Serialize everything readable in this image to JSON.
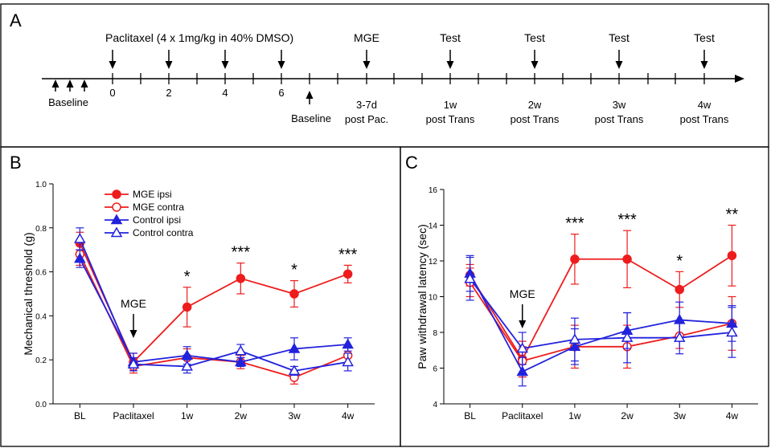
{
  "colors": {
    "red": "#ee1c1c",
    "blue": "#2222dd",
    "black": "#000000"
  },
  "panel_a": {
    "letter": "A",
    "paclitaxel_label": "Paclitaxel (4 x 1mg/kg in 40% DMSO)",
    "mge_label": "MGE",
    "test_label": "Test",
    "baseline_left": "Baseline",
    "baseline_right": "Baseline",
    "day_labels": [
      "0",
      "2",
      "4",
      "6"
    ],
    "stage_lines": [
      [
        "3-7d",
        "post Pac."
      ],
      [
        "1w",
        "post Trans"
      ],
      [
        "2w",
        "post Trans"
      ],
      [
        "3w",
        "post Trans"
      ],
      [
        "4w",
        "post Trans"
      ]
    ]
  },
  "chart_data": [
    {
      "panel": "B",
      "type": "line",
      "ylabel": "Mechanical threshold (g)",
      "xlabel": "",
      "categories": [
        "BL",
        "Paclitaxel",
        "1w",
        "2w",
        "3w",
        "4w"
      ],
      "ylim": [
        0.0,
        1.0
      ],
      "yticks": [
        "0.0",
        "0.2",
        "0.4",
        "0.6",
        "0.8",
        "1.0"
      ],
      "annotation": "MGE",
      "annotation_at": "Paclitaxel",
      "legend_position": "top-left",
      "significance": [
        "",
        "",
        "*",
        "***",
        "*",
        "***"
      ],
      "series": [
        {
          "name": "MGE ipsi",
          "color": "red",
          "marker": "circle",
          "filled": true,
          "values": [
            0.73,
            0.19,
            0.44,
            0.57,
            0.5,
            0.59
          ],
          "errors": [
            0.05,
            0.04,
            0.09,
            0.07,
            0.06,
            0.04
          ]
        },
        {
          "name": "MGE contra",
          "color": "red",
          "marker": "circle",
          "filled": false,
          "values": [
            0.68,
            0.17,
            0.21,
            0.19,
            0.12,
            0.22
          ],
          "errors": [
            0.05,
            0.03,
            0.04,
            0.03,
            0.03,
            0.04
          ]
        },
        {
          "name": "Control ipsi",
          "color": "blue",
          "marker": "triangle",
          "filled": true,
          "values": [
            0.66,
            0.19,
            0.22,
            0.19,
            0.25,
            0.27
          ],
          "errors": [
            0.04,
            0.04,
            0.04,
            0.02,
            0.05,
            0.03
          ]
        },
        {
          "name": "Control contra",
          "color": "blue",
          "marker": "triangle",
          "filled": false,
          "values": [
            0.75,
            0.18,
            0.17,
            0.24,
            0.15,
            0.19
          ],
          "errors": [
            0.05,
            0.03,
            0.03,
            0.03,
            0.02,
            0.04
          ]
        }
      ]
    },
    {
      "panel": "C",
      "type": "line",
      "ylabel": "Paw withdrawal latency (sec)",
      "xlabel": "",
      "categories": [
        "BL",
        "Paclitaxel",
        "1w",
        "2w",
        "3w",
        "4w"
      ],
      "ylim": [
        4,
        16
      ],
      "yticks": [
        "4",
        "6",
        "8",
        "10",
        "12",
        "14",
        "16"
      ],
      "annotation": "MGE",
      "annotation_at": "Paclitaxel",
      "significance": [
        "",
        "",
        "***",
        "***",
        "*",
        "**"
      ],
      "series": [
        {
          "name": "MGE ipsi",
          "color": "red",
          "marker": "circle",
          "filled": true,
          "values": [
            11.2,
            6.5,
            12.1,
            12.1,
            10.4,
            12.3
          ],
          "errors": [
            0.6,
            1.0,
            1.4,
            1.6,
            1.0,
            1.7
          ]
        },
        {
          "name": "MGE contra",
          "color": "red",
          "marker": "circle",
          "filled": false,
          "values": [
            10.8,
            6.4,
            7.2,
            7.2,
            7.8,
            8.5
          ],
          "errors": [
            0.8,
            0.8,
            1.2,
            1.2,
            0.7,
            1.5
          ]
        },
        {
          "name": "Control ipsi",
          "color": "blue",
          "marker": "triangle",
          "filled": true,
          "values": [
            11.3,
            5.8,
            7.2,
            8.1,
            8.7,
            8.5
          ],
          "errors": [
            1.0,
            0.8,
            1.0,
            1.0,
            1.0,
            1.0
          ]
        },
        {
          "name": "Control contra",
          "color": "blue",
          "marker": "triangle",
          "filled": false,
          "values": [
            11.0,
            7.1,
            7.6,
            7.7,
            7.7,
            8.0
          ],
          "errors": [
            1.2,
            0.9,
            1.2,
            1.4,
            0.9,
            1.4
          ]
        }
      ]
    }
  ]
}
